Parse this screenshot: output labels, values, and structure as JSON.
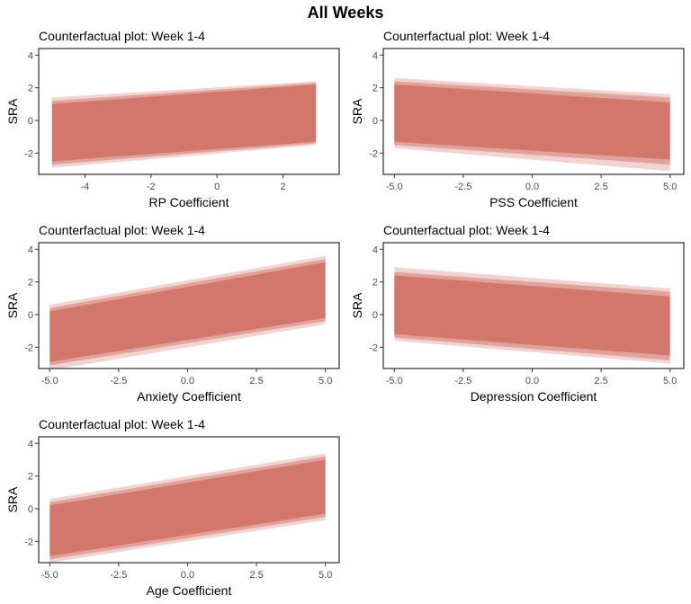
{
  "figure": {
    "title": "All Weeks"
  },
  "chart_data": [
    {
      "type": "area",
      "title": "Counterfactual plot: Week 1-4",
      "xlabel": "RP Coefficient",
      "ylabel": "SRA",
      "xlim": [
        -5.4,
        3.7
      ],
      "ylim": [
        -3.3,
        4.4
      ],
      "xticks": [
        -4,
        -2,
        0,
        2
      ],
      "xtick_labels": [
        "-4",
        "-2",
        "0",
        "2"
      ],
      "yticks": [
        -2,
        0,
        2,
        4
      ],
      "ytick_labels": [
        "-2",
        "0",
        "2",
        "4"
      ],
      "grid": false,
      "series": [
        {
          "x": [
            -5,
            3
          ],
          "lower": [
            -2.9,
            -1.5
          ],
          "upper": [
            1.4,
            2.4
          ]
        },
        {
          "x": [
            -5,
            3
          ],
          "lower": [
            -2.7,
            -1.4
          ],
          "upper": [
            1.2,
            2.3
          ]
        },
        {
          "x": [
            -5,
            3
          ],
          "lower": [
            -2.5,
            -1.3
          ],
          "upper": [
            1.0,
            2.2
          ]
        }
      ]
    },
    {
      "type": "area",
      "title": "Counterfactual plot: Week 1-4",
      "xlabel": "PSS Coefficient",
      "ylabel": "SRA",
      "xlim": [
        -5.4,
        5.5
      ],
      "ylim": [
        -3.3,
        4.4
      ],
      "xticks": [
        -5,
        -2.5,
        0,
        2.5,
        5
      ],
      "xtick_labels": [
        "-5.0",
        "-2.5",
        "0.0",
        "2.5",
        "5.0"
      ],
      "yticks": [
        -2,
        0,
        2,
        4
      ],
      "ytick_labels": [
        "-2",
        "0",
        "2",
        "4"
      ],
      "grid": false,
      "series": [
        {
          "x": [
            -5,
            5
          ],
          "lower": [
            -1.7,
            -3.1
          ],
          "upper": [
            2.6,
            1.6
          ]
        },
        {
          "x": [
            -5,
            5
          ],
          "lower": [
            -1.5,
            -2.7
          ],
          "upper": [
            2.4,
            1.4
          ]
        },
        {
          "x": [
            -5,
            5
          ],
          "lower": [
            -1.3,
            -2.4
          ],
          "upper": [
            2.2,
            1.1
          ]
        }
      ]
    },
    {
      "type": "area",
      "title": "Counterfactual plot: Week 1-4",
      "xlabel": "Anxiety Coefficient",
      "ylabel": "SRA",
      "xlim": [
        -5.4,
        5.5
      ],
      "ylim": [
        -3.3,
        4.4
      ],
      "xticks": [
        -5,
        -2.5,
        0,
        2.5,
        5
      ],
      "xtick_labels": [
        "-5.0",
        "-2.5",
        "0.0",
        "2.5",
        "5.0"
      ],
      "yticks": [
        -2,
        0,
        2,
        4
      ],
      "ytick_labels": [
        "-2",
        "0",
        "2",
        "4"
      ],
      "grid": false,
      "series": [
        {
          "x": [
            -5,
            5
          ],
          "lower": [
            -3.4,
            -0.6
          ],
          "upper": [
            0.6,
            3.6
          ]
        },
        {
          "x": [
            -5,
            5
          ],
          "lower": [
            -3.1,
            -0.4
          ],
          "upper": [
            0.4,
            3.4
          ]
        },
        {
          "x": [
            -5,
            5
          ],
          "lower": [
            -2.9,
            -0.2
          ],
          "upper": [
            0.2,
            3.2
          ]
        }
      ]
    },
    {
      "type": "area",
      "title": "Counterfactual plot: Week 1-4",
      "xlabel": "Depression Coefficient",
      "ylabel": "SRA",
      "xlim": [
        -5.4,
        5.5
      ],
      "ylim": [
        -3.3,
        4.4
      ],
      "xticks": [
        -5,
        -2.5,
        0,
        2.5,
        5
      ],
      "xtick_labels": [
        "-5.0",
        "-2.5",
        "0.0",
        "2.5",
        "5.0"
      ],
      "yticks": [
        -2,
        0,
        2,
        4
      ],
      "ytick_labels": [
        "-2",
        "0",
        "2",
        "4"
      ],
      "grid": false,
      "series": [
        {
          "x": [
            -5,
            5
          ],
          "lower": [
            -1.6,
            -3.0
          ],
          "upper": [
            2.9,
            1.6
          ]
        },
        {
          "x": [
            -5,
            5
          ],
          "lower": [
            -1.4,
            -2.8
          ],
          "upper": [
            2.6,
            1.4
          ]
        },
        {
          "x": [
            -5,
            5
          ],
          "lower": [
            -1.2,
            -2.5
          ],
          "upper": [
            2.4,
            1.1
          ]
        }
      ]
    },
    {
      "type": "area",
      "title": "Counterfactual plot: Week 1-4",
      "xlabel": "Age Coefficient",
      "ylabel": "SRA",
      "xlim": [
        -5.4,
        5.5
      ],
      "ylim": [
        -3.3,
        4.4
      ],
      "xticks": [
        -5,
        -2.5,
        0,
        2.5,
        5
      ],
      "xtick_labels": [
        "-5.0",
        "-2.5",
        "0.0",
        "2.5",
        "5.0"
      ],
      "yticks": [
        -2,
        0,
        2,
        4
      ],
      "ytick_labels": [
        "-2",
        "0",
        "2",
        "4"
      ],
      "grid": false,
      "series": [
        {
          "x": [
            -5,
            5
          ],
          "lower": [
            -3.3,
            -0.7
          ],
          "upper": [
            0.6,
            3.4
          ]
        },
        {
          "x": [
            -5,
            5
          ],
          "lower": [
            -3.1,
            -0.5
          ],
          "upper": [
            0.4,
            3.2
          ]
        },
        {
          "x": [
            -5,
            5
          ],
          "lower": [
            -2.9,
            -0.3
          ],
          "upper": [
            0.2,
            3.0
          ]
        }
      ]
    }
  ],
  "colors": {
    "band": "#c0392b",
    "axis_line": "#000000",
    "tick_text": "#4d4d4d"
  }
}
